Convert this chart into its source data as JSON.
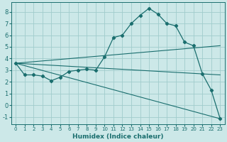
{
  "bg_color": "#cce8e8",
  "grid_color": "#a0cccc",
  "line_color": "#1a6e6e",
  "xlabel": "Humidex (Indice chaleur)",
  "xlim": [
    -0.5,
    23.5
  ],
  "ylim": [
    -1.6,
    8.8
  ],
  "yticks": [
    -1,
    0,
    1,
    2,
    3,
    4,
    5,
    6,
    7,
    8
  ],
  "xticks": [
    0,
    1,
    2,
    3,
    4,
    5,
    6,
    7,
    8,
    9,
    10,
    11,
    12,
    13,
    14,
    15,
    16,
    17,
    18,
    19,
    20,
    21,
    22,
    23
  ],
  "main_line": {
    "x": [
      0,
      1,
      2,
      3,
      4,
      5,
      6,
      7,
      8,
      9,
      10,
      11,
      12,
      13,
      14,
      15,
      16,
      17,
      18,
      19,
      20,
      21,
      22,
      23
    ],
    "y": [
      3.6,
      2.6,
      2.6,
      2.5,
      2.1,
      2.4,
      2.9,
      3.0,
      3.1,
      3.0,
      4.15,
      5.8,
      6.0,
      7.0,
      7.7,
      8.3,
      7.8,
      7.0,
      6.8,
      5.4,
      5.1,
      2.7,
      1.3,
      -1.15
    ]
  },
  "trend_lines": [
    {
      "x": [
        0,
        23
      ],
      "y": [
        3.6,
        2.6
      ]
    },
    {
      "x": [
        0,
        23
      ],
      "y": [
        3.6,
        5.1
      ]
    },
    {
      "x": [
        0,
        23
      ],
      "y": [
        3.6,
        -1.15
      ]
    }
  ]
}
